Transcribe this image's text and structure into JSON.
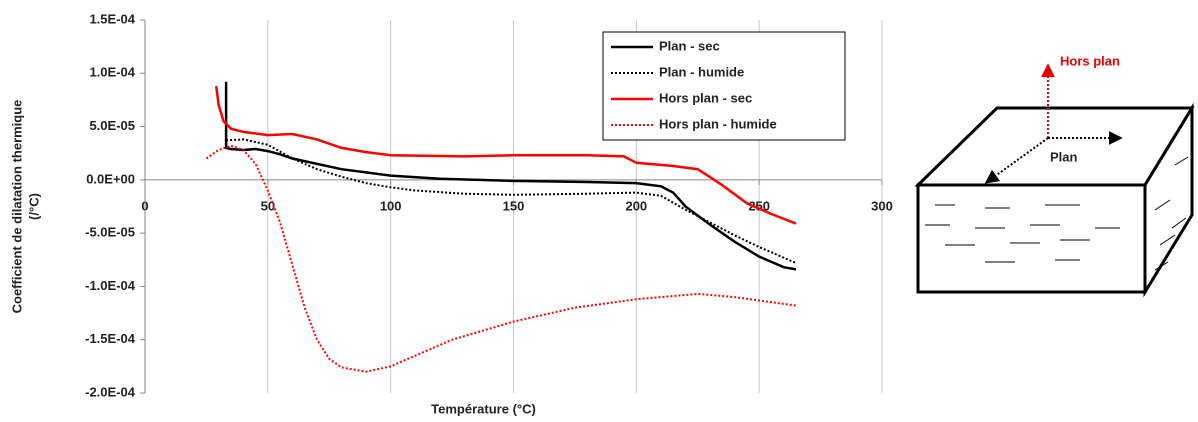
{
  "chart_data": {
    "type": "line",
    "x_label": "Température (°C)",
    "y_label": [
      "Coefficient de dilatation thermique",
      "(/°C)"
    ],
    "xlim": [
      0,
      300
    ],
    "xticks": [
      0,
      50,
      100,
      150,
      200,
      250,
      300
    ],
    "ylim": [
      -0.0002,
      0.00015
    ],
    "yticks": [
      {
        "value": 0.00015,
        "label": "1.5E-04"
      },
      {
        "value": 0.0001,
        "label": "1.0E-04"
      },
      {
        "value": 5e-05,
        "label": "5.0E-05"
      },
      {
        "value": 0,
        "label": "0.0E+00"
      },
      {
        "value": -5e-05,
        "label": "-5.0E-05"
      },
      {
        "value": -0.0001,
        "label": "-1.0E-04"
      },
      {
        "value": -0.00015,
        "label": "-1.5E-04"
      },
      {
        "value": -0.0002,
        "label": "-2.0E-04"
      }
    ],
    "grid": "x",
    "legend": "upper right",
    "series": [
      {
        "name": "Plan - sec",
        "color": "#000000",
        "line_style": "solid",
        "x": [
          33,
          33,
          35,
          40,
          45,
          50,
          55,
          60,
          70,
          80,
          90,
          100,
          120,
          150,
          180,
          200,
          210,
          215,
          220,
          230,
          240,
          250,
          260,
          265
        ],
        "values": [
          9.2e-05,
          3e-05,
          2.9e-05,
          2.8e-05,
          2.9e-05,
          2.7e-05,
          2.4e-05,
          2e-05,
          1.5e-05,
          1e-05,
          7e-06,
          4e-06,
          1e-06,
          -1e-06,
          -2e-06,
          -3e-06,
          -6e-06,
          -1.2e-05,
          -2.5e-05,
          -4.2e-05,
          -5.8e-05,
          -7.2e-05,
          -8.2e-05,
          -8.4e-05
        ]
      },
      {
        "name": "Plan - humide",
        "color": "#000000",
        "line_style": "dotted",
        "x": [
          33,
          40,
          50,
          60,
          70,
          80,
          90,
          100,
          110,
          130,
          150,
          180,
          200,
          210,
          220,
          230,
          240,
          250,
          260,
          265
        ],
        "values": [
          3.7e-05,
          3.8e-05,
          3.3e-05,
          2e-05,
          1e-05,
          3e-06,
          -3e-06,
          -7e-06,
          -1e-05,
          -1.3e-05,
          -1.4e-05,
          -1.3e-05,
          -1.2e-05,
          -1.5e-05,
          -2.8e-05,
          -4e-05,
          -5.2e-05,
          -6.3e-05,
          -7.3e-05,
          -7.8e-05
        ]
      },
      {
        "name": "Hors plan - sec",
        "color": "#ff0000",
        "line_style": "solid",
        "x": [
          29,
          30,
          32,
          35,
          40,
          50,
          60,
          70,
          80,
          90,
          100,
          130,
          150,
          180,
          195,
          200,
          215,
          225,
          235,
          245,
          255,
          265
        ],
        "values": [
          8.8e-05,
          7e-05,
          5.5e-05,
          4.8e-05,
          4.5e-05,
          4.2e-05,
          4.3e-05,
          3.8e-05,
          3e-05,
          2.6e-05,
          2.3e-05,
          2.2e-05,
          2.3e-05,
          2.3e-05,
          2.2e-05,
          1.6e-05,
          1.3e-05,
          1e-05,
          -5e-06,
          -2.2e-05,
          -3.2e-05,
          -4.1e-05
        ]
      },
      {
        "name": "Hors plan - humide",
        "color": "#ff0000",
        "line_style": "dotted",
        "x": [
          25,
          28,
          30,
          35,
          40,
          45,
          50,
          55,
          60,
          65,
          70,
          75,
          80,
          90,
          100,
          110,
          125,
          150,
          175,
          200,
          225,
          240,
          265
        ],
        "values": [
          2e-05,
          2.5e-05,
          2.8e-05,
          3.2e-05,
          2.8e-05,
          1.5e-05,
          -1e-05,
          -4e-05,
          -8e-05,
          -0.00012,
          -0.00015,
          -0.000168,
          -0.000176,
          -0.00018,
          -0.000175,
          -0.000165,
          -0.00015,
          -0.000133,
          -0.00012,
          -0.000112,
          -0.000107,
          -0.00011,
          -0.000118
        ]
      }
    ]
  },
  "diagram": {
    "out_of_plane_label": "Hors plan",
    "in_plane_label": "Plan"
  }
}
